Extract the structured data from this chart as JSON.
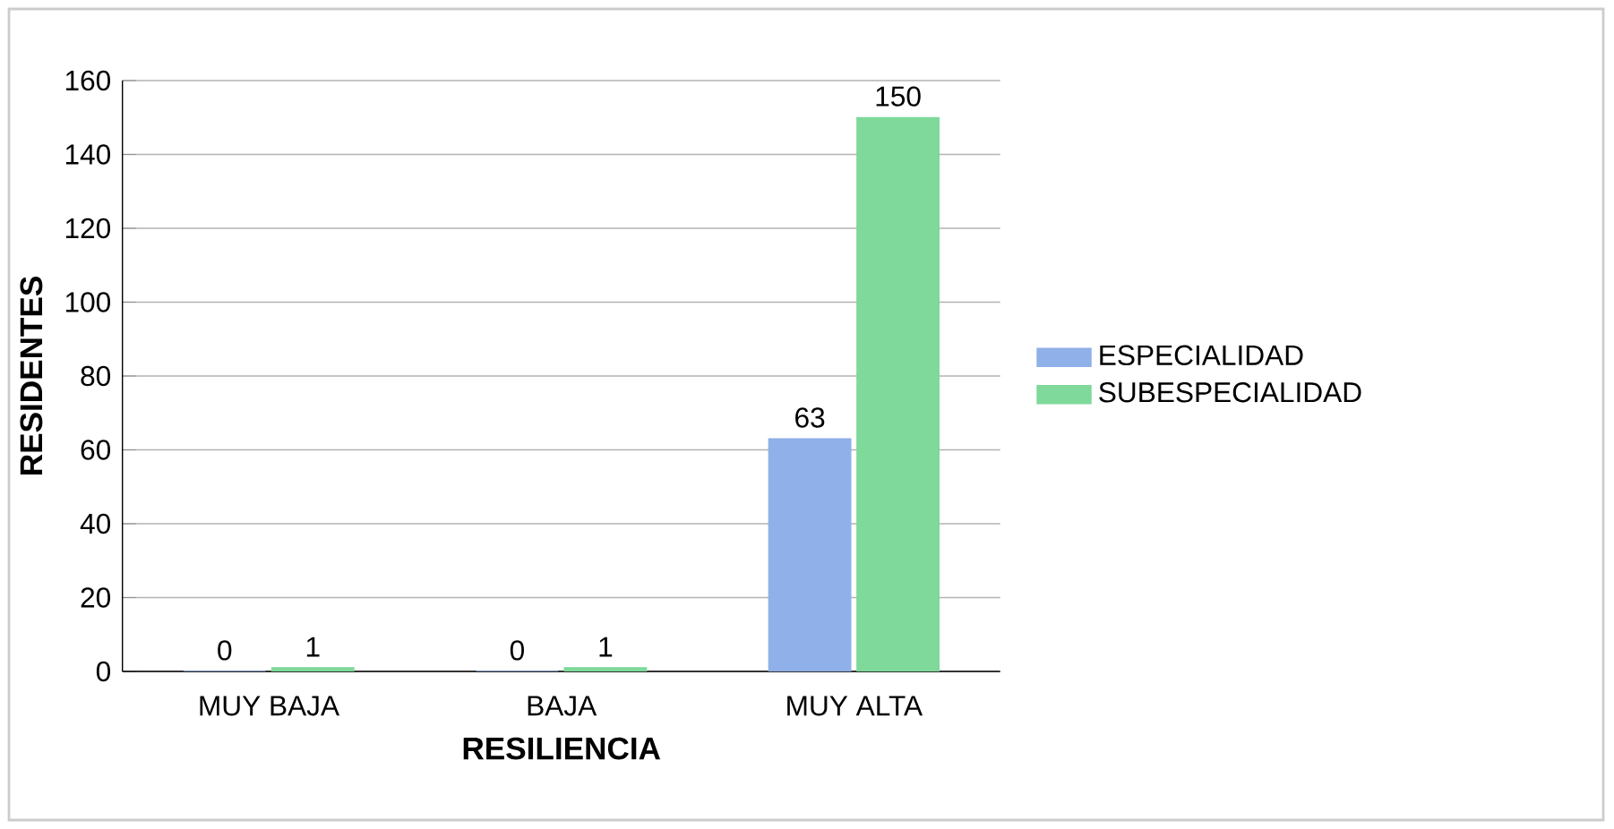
{
  "chart_data": {
    "type": "bar",
    "xlabel": "RESILIENCIA",
    "ylabel": "RESIDENTES",
    "categories": [
      "MUY BAJA",
      "BAJA",
      "MUY ALTA"
    ],
    "series": [
      {
        "name": "ESPECIALIDAD",
        "color": "#8fb0e8",
        "values": [
          0,
          0,
          63
        ]
      },
      {
        "name": "SUBESPECIALIDAD",
        "color": "#7fd99a",
        "values": [
          1,
          1,
          150
        ]
      }
    ],
    "ylim": [
      0,
      160
    ],
    "yticks": [
      0,
      20,
      40,
      60,
      80,
      100,
      120,
      140,
      160
    ],
    "grid": "y",
    "legend": "right",
    "data_labels": true
  }
}
